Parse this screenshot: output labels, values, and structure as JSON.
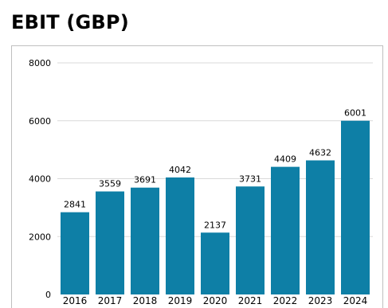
{
  "chart_data": {
    "type": "bar",
    "title": "EBIT (GBP)",
    "categories": [
      "2016",
      "2017",
      "2018",
      "2019",
      "2020",
      "2021",
      "2022",
      "2023",
      "2024"
    ],
    "values": [
      2841,
      3559,
      3691,
      4042,
      2137,
      3731,
      4409,
      4632,
      6001
    ],
    "yticks": [
      0,
      2000,
      4000,
      6000,
      8000
    ],
    "ylim": [
      0,
      8000
    ],
    "grid": "horizontal",
    "bar_color": "#0e7fa6",
    "grid_color": "#d9d9d9"
  }
}
